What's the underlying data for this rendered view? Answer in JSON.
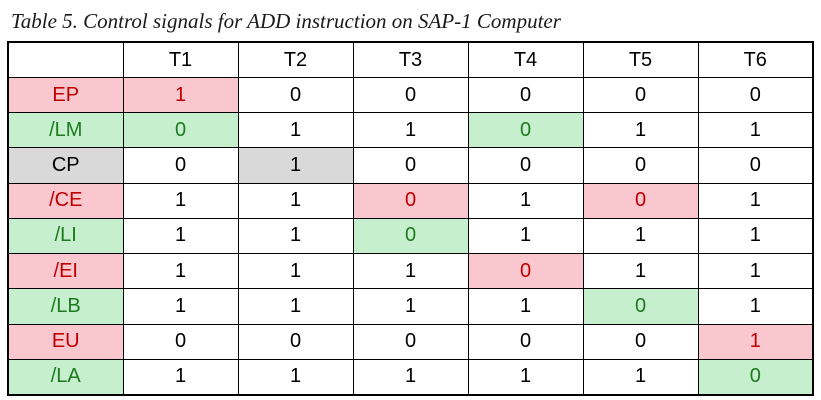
{
  "caption": "Table 5. Control signals for ADD instruction on SAP-1 Computer",
  "colors": {
    "active_red_bg": "#fbc7ce",
    "active_green_bg": "#c6efce",
    "active_gray_bg": "#d9d9d9",
    "red_text": "#c00000",
    "green_text": "#1e7a1e"
  },
  "table": {
    "header": [
      "",
      "T1",
      "T2",
      "T3",
      "T4",
      "T5",
      "T6"
    ],
    "rows": [
      {
        "signal": "EP",
        "style": "red",
        "values": [
          "1",
          "0",
          "0",
          "0",
          "0",
          "0"
        ],
        "active": [
          true,
          false,
          false,
          false,
          false,
          false
        ]
      },
      {
        "signal": "/LM",
        "style": "green",
        "values": [
          "0",
          "1",
          "1",
          "0",
          "1",
          "1"
        ],
        "active": [
          true,
          false,
          false,
          true,
          false,
          false
        ]
      },
      {
        "signal": "CP",
        "style": "gray",
        "values": [
          "0",
          "1",
          "0",
          "0",
          "0",
          "0"
        ],
        "active": [
          false,
          true,
          false,
          false,
          false,
          false
        ]
      },
      {
        "signal": "/CE",
        "style": "red",
        "values": [
          "1",
          "1",
          "0",
          "1",
          "0",
          "1"
        ],
        "active": [
          false,
          false,
          true,
          false,
          true,
          false
        ]
      },
      {
        "signal": "/LI",
        "style": "green",
        "values": [
          "1",
          "1",
          "0",
          "1",
          "1",
          "1"
        ],
        "active": [
          false,
          false,
          true,
          false,
          false,
          false
        ]
      },
      {
        "signal": "/EI",
        "style": "red",
        "values": [
          "1",
          "1",
          "1",
          "0",
          "1",
          "1"
        ],
        "active": [
          false,
          false,
          false,
          true,
          false,
          false
        ]
      },
      {
        "signal": "/LB",
        "style": "green",
        "values": [
          "1",
          "1",
          "1",
          "1",
          "0",
          "1"
        ],
        "active": [
          false,
          false,
          false,
          false,
          true,
          false
        ]
      },
      {
        "signal": "EU",
        "style": "red",
        "values": [
          "0",
          "0",
          "0",
          "0",
          "0",
          "1"
        ],
        "active": [
          false,
          false,
          false,
          false,
          false,
          true
        ]
      },
      {
        "signal": "/LA",
        "style": "green",
        "values": [
          "1",
          "1",
          "1",
          "1",
          "1",
          "0"
        ],
        "active": [
          false,
          false,
          false,
          false,
          false,
          true
        ]
      }
    ]
  }
}
